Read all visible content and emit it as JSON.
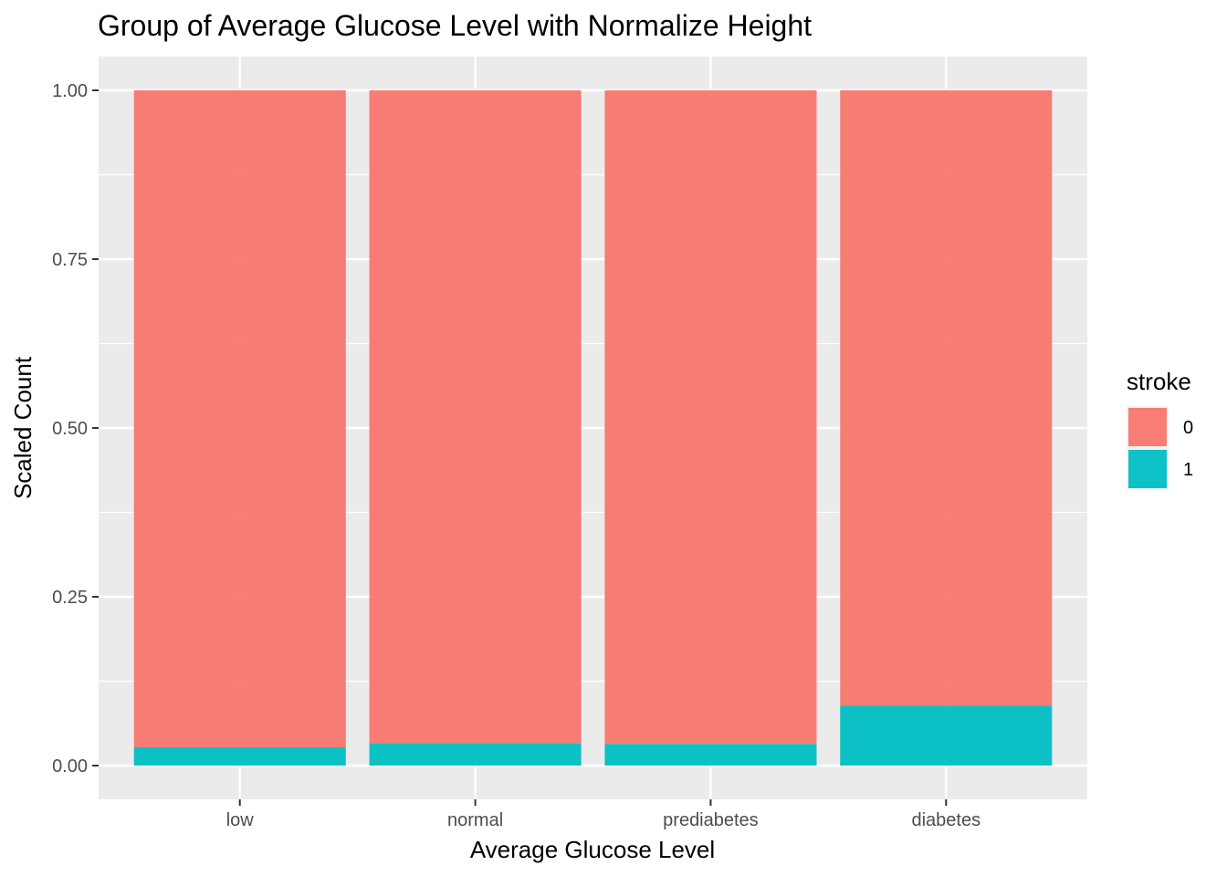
{
  "chart_data": {
    "type": "bar",
    "stacked": true,
    "title": "Group of Average Glucose Level with Normalize Height",
    "xlabel": "Average Glucose Level",
    "ylabel": "Scaled Count",
    "categories": [
      "low",
      "normal",
      "prediabetes",
      "diabetes"
    ],
    "ylim": [
      -0.05,
      1.05
    ],
    "yticks": [
      0.0,
      0.25,
      0.5,
      0.75,
      1.0
    ],
    "ytick_labels": [
      "0.00",
      "0.25",
      "0.50",
      "0.75",
      "1.00"
    ],
    "legend": {
      "title": "stroke",
      "position": "right"
    },
    "series": [
      {
        "name": "0",
        "color": "#F8766D",
        "values": [
          0.973,
          0.967,
          0.968,
          0.911
        ]
      },
      {
        "name": "1",
        "color": "#00BFC4",
        "values": [
          0.027,
          0.033,
          0.032,
          0.089
        ]
      }
    ],
    "grid": true,
    "panel_background": "#EBEBEB"
  }
}
